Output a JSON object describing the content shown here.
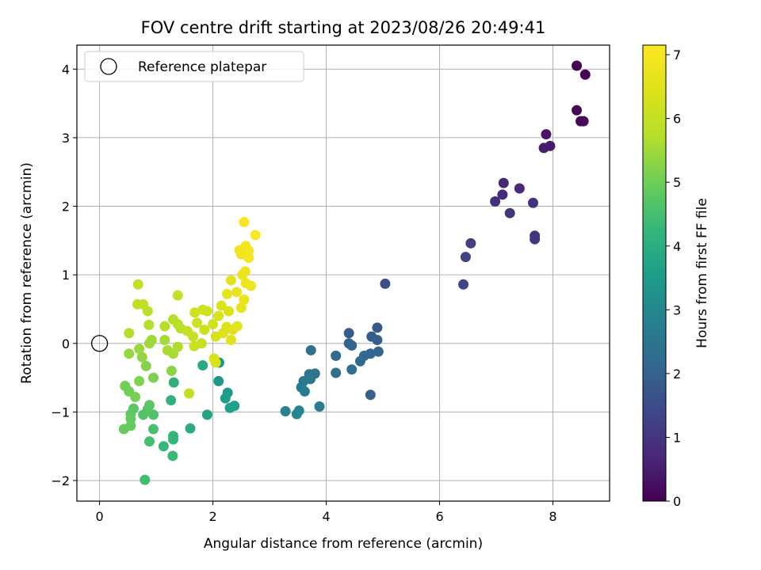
{
  "chart_data": {
    "type": "scatter",
    "title": "FOV centre drift starting at 2023/08/26 20:49:41",
    "xlabel": "Angular distance from reference (arcmin)",
    "ylabel": "Rotation from reference (arcmin)",
    "xlim": [
      -0.4,
      9.0
    ],
    "ylim": [
      -2.3,
      4.35
    ],
    "xticks": [
      0,
      2,
      4,
      6,
      8
    ],
    "yticks": [
      -2,
      -1,
      0,
      1,
      2,
      3,
      4
    ],
    "grid": true,
    "legend": {
      "position": "top-left",
      "entries": [
        "Reference platepar"
      ]
    },
    "reference_point": {
      "x": 0,
      "y": 0
    },
    "colorbar": {
      "label": "Hours from first FF file",
      "range": [
        0,
        7.15
      ],
      "ticks": [
        0,
        1,
        2,
        3,
        4,
        5,
        6,
        7
      ],
      "colormap": "viridis"
    },
    "points": [
      {
        "x": 8.42,
        "y": 4.05,
        "c": 0.05
      },
      {
        "x": 8.57,
        "y": 3.92,
        "c": 0.08
      },
      {
        "x": 8.42,
        "y": 3.4,
        "c": 0.12
      },
      {
        "x": 8.49,
        "y": 3.24,
        "c": 0.15
      },
      {
        "x": 8.54,
        "y": 3.24,
        "c": 0.18
      },
      {
        "x": 7.88,
        "y": 3.05,
        "c": 0.4
      },
      {
        "x": 7.95,
        "y": 2.88,
        "c": 0.45
      },
      {
        "x": 7.84,
        "y": 2.85,
        "c": 0.5
      },
      {
        "x": 7.13,
        "y": 2.34,
        "c": 0.7
      },
      {
        "x": 7.41,
        "y": 2.26,
        "c": 0.75
      },
      {
        "x": 7.11,
        "y": 2.17,
        "c": 0.8
      },
      {
        "x": 6.98,
        "y": 2.07,
        "c": 0.85
      },
      {
        "x": 7.65,
        "y": 2.05,
        "c": 0.9
      },
      {
        "x": 7.24,
        "y": 1.9,
        "c": 0.95
      },
      {
        "x": 7.68,
        "y": 1.57,
        "c": 1.0
      },
      {
        "x": 7.68,
        "y": 1.52,
        "c": 1.05
      },
      {
        "x": 6.55,
        "y": 1.46,
        "c": 1.2
      },
      {
        "x": 6.46,
        "y": 1.26,
        "c": 1.25
      },
      {
        "x": 6.42,
        "y": 0.86,
        "c": 1.35
      },
      {
        "x": 5.04,
        "y": 0.87,
        "c": 1.55
      },
      {
        "x": 4.9,
        "y": 0.23,
        "c": 1.8
      },
      {
        "x": 4.4,
        "y": 0.15,
        "c": 1.85
      },
      {
        "x": 4.8,
        "y": 0.1,
        "c": 1.9
      },
      {
        "x": 4.9,
        "y": 0.05,
        "c": 1.95
      },
      {
        "x": 4.4,
        "y": 0.0,
        "c": 2.0
      },
      {
        "x": 4.45,
        "y": -0.03,
        "c": 2.05
      },
      {
        "x": 4.92,
        "y": -0.12,
        "c": 2.1
      },
      {
        "x": 4.78,
        "y": -0.15,
        "c": 2.1
      },
      {
        "x": 4.67,
        "y": -0.18,
        "c": 2.15
      },
      {
        "x": 4.17,
        "y": -0.18,
        "c": 2.2
      },
      {
        "x": 4.6,
        "y": -0.26,
        "c": 2.25
      },
      {
        "x": 4.45,
        "y": -0.38,
        "c": 2.3
      },
      {
        "x": 4.17,
        "y": -0.43,
        "c": 2.35
      },
      {
        "x": 3.73,
        "y": -0.1,
        "c": 2.4
      },
      {
        "x": 3.8,
        "y": -0.44,
        "c": 2.45
      },
      {
        "x": 3.7,
        "y": -0.45,
        "c": 2.5
      },
      {
        "x": 3.72,
        "y": -0.52,
        "c": 2.55
      },
      {
        "x": 3.6,
        "y": -0.55,
        "c": 2.6
      },
      {
        "x": 3.56,
        "y": -0.64,
        "c": 2.65
      },
      {
        "x": 3.62,
        "y": -0.7,
        "c": 2.7
      },
      {
        "x": 4.78,
        "y": -0.75,
        "c": 2.0
      },
      {
        "x": 3.88,
        "y": -0.92,
        "c": 2.75
      },
      {
        "x": 3.28,
        "y": -0.99,
        "c": 2.85
      },
      {
        "x": 3.52,
        "y": -0.98,
        "c": 2.9
      },
      {
        "x": 3.48,
        "y": -1.03,
        "c": 2.95
      },
      {
        "x": 2.11,
        "y": -0.28,
        "c": 3.3
      },
      {
        "x": 2.1,
        "y": -0.55,
        "c": 3.4
      },
      {
        "x": 2.26,
        "y": -0.72,
        "c": 3.5
      },
      {
        "x": 2.22,
        "y": -0.8,
        "c": 3.55
      },
      {
        "x": 2.38,
        "y": -0.91,
        "c": 3.6
      },
      {
        "x": 2.3,
        "y": -0.94,
        "c": 3.65
      },
      {
        "x": 1.9,
        "y": -1.04,
        "c": 3.75
      },
      {
        "x": 1.82,
        "y": -0.32,
        "c": 3.85
      },
      {
        "x": 1.6,
        "y": -1.24,
        "c": 3.95
      },
      {
        "x": 1.31,
        "y": -0.57,
        "c": 4.1
      },
      {
        "x": 1.26,
        "y": -0.83,
        "c": 4.15
      },
      {
        "x": 1.3,
        "y": -1.35,
        "c": 4.2
      },
      {
        "x": 1.3,
        "y": -1.4,
        "c": 4.25
      },
      {
        "x": 1.13,
        "y": -1.5,
        "c": 4.3
      },
      {
        "x": 1.29,
        "y": -1.64,
        "c": 4.35
      },
      {
        "x": 0.8,
        "y": -1.99,
        "c": 4.45
      },
      {
        "x": 0.88,
        "y": -1.43,
        "c": 4.5
      },
      {
        "x": 0.95,
        "y": -1.25,
        "c": 4.55
      },
      {
        "x": 0.95,
        "y": -1.04,
        "c": 4.6
      },
      {
        "x": 0.77,
        "y": -1.04,
        "c": 4.65
      },
      {
        "x": 0.85,
        "y": -0.96,
        "c": 4.7
      },
      {
        "x": 0.88,
        "y": -0.9,
        "c": 4.75
      },
      {
        "x": 0.6,
        "y": -0.95,
        "c": 4.8
      },
      {
        "x": 0.55,
        "y": -1.03,
        "c": 4.8
      },
      {
        "x": 0.55,
        "y": -1.1,
        "c": 4.85
      },
      {
        "x": 0.55,
        "y": -1.2,
        "c": 4.9
      },
      {
        "x": 0.43,
        "y": -1.25,
        "c": 4.9
      },
      {
        "x": 0.52,
        "y": -0.7,
        "c": 5.0
      },
      {
        "x": 0.45,
        "y": -0.62,
        "c": 5.05
      },
      {
        "x": 0.63,
        "y": -0.78,
        "c": 5.1
      },
      {
        "x": 0.95,
        "y": -0.5,
        "c": 5.15
      },
      {
        "x": 0.7,
        "y": -0.55,
        "c": 5.2
      },
      {
        "x": 0.82,
        "y": -0.33,
        "c": 5.25
      },
      {
        "x": 1.27,
        "y": -0.4,
        "c": 5.3
      },
      {
        "x": 0.75,
        "y": -0.2,
        "c": 5.35
      },
      {
        "x": 0.52,
        "y": -0.15,
        "c": 5.4
      },
      {
        "x": 0.7,
        "y": -0.08,
        "c": 5.45
      },
      {
        "x": 0.88,
        "y": 0.0,
        "c": 5.5
      },
      {
        "x": 0.92,
        "y": 0.05,
        "c": 5.5
      },
      {
        "x": 1.15,
        "y": 0.05,
        "c": 5.55
      },
      {
        "x": 1.2,
        "y": -0.1,
        "c": 5.6
      },
      {
        "x": 1.3,
        "y": -0.15,
        "c": 5.6
      },
      {
        "x": 1.38,
        "y": -0.05,
        "c": 5.65
      },
      {
        "x": 0.52,
        "y": 0.15,
        "c": 5.7
      },
      {
        "x": 0.87,
        "y": 0.27,
        "c": 5.7
      },
      {
        "x": 1.15,
        "y": 0.25,
        "c": 5.75
      },
      {
        "x": 1.3,
        "y": 0.35,
        "c": 5.75
      },
      {
        "x": 1.38,
        "y": 0.28,
        "c": 5.8
      },
      {
        "x": 1.43,
        "y": 0.22,
        "c": 5.8
      },
      {
        "x": 0.85,
        "y": 0.47,
        "c": 5.85
      },
      {
        "x": 0.67,
        "y": 0.57,
        "c": 5.85
      },
      {
        "x": 0.77,
        "y": 0.57,
        "c": 5.9
      },
      {
        "x": 0.68,
        "y": 0.86,
        "c": 5.9
      },
      {
        "x": 1.38,
        "y": 0.7,
        "c": 5.95
      },
      {
        "x": 1.58,
        "y": -0.73,
        "c": 5.95
      },
      {
        "x": 1.55,
        "y": 0.18,
        "c": 6.0
      },
      {
        "x": 1.65,
        "y": 0.1,
        "c": 6.05
      },
      {
        "x": 1.8,
        "y": 0.0,
        "c": 6.05
      },
      {
        "x": 1.67,
        "y": -0.04,
        "c": 6.1
      },
      {
        "x": 1.85,
        "y": 0.2,
        "c": 6.1
      },
      {
        "x": 1.72,
        "y": 0.3,
        "c": 6.15
      },
      {
        "x": 1.68,
        "y": 0.45,
        "c": 6.15
      },
      {
        "x": 1.9,
        "y": 0.47,
        "c": 6.2
      },
      {
        "x": 1.82,
        "y": 0.49,
        "c": 6.2
      },
      {
        "x": 2.0,
        "y": 0.28,
        "c": 6.25
      },
      {
        "x": 2.05,
        "y": 0.1,
        "c": 6.3
      },
      {
        "x": 2.1,
        "y": 0.4,
        "c": 6.3
      },
      {
        "x": 2.02,
        "y": -0.22,
        "c": 6.35
      },
      {
        "x": 2.05,
        "y": -0.28,
        "c": 6.35
      },
      {
        "x": 2.15,
        "y": 0.55,
        "c": 6.4
      },
      {
        "x": 2.18,
        "y": 0.15,
        "c": 6.4
      },
      {
        "x": 2.24,
        "y": 0.24,
        "c": 6.45
      },
      {
        "x": 2.28,
        "y": 0.47,
        "c": 6.45
      },
      {
        "x": 2.32,
        "y": 0.05,
        "c": 6.5
      },
      {
        "x": 2.35,
        "y": 0.2,
        "c": 6.5
      },
      {
        "x": 2.43,
        "y": 0.25,
        "c": 6.55
      },
      {
        "x": 2.25,
        "y": 0.72,
        "c": 6.6
      },
      {
        "x": 2.32,
        "y": 0.92,
        "c": 6.6
      },
      {
        "x": 2.42,
        "y": 0.75,
        "c": 6.65
      },
      {
        "x": 2.5,
        "y": 0.52,
        "c": 6.65
      },
      {
        "x": 2.55,
        "y": 0.64,
        "c": 6.7
      },
      {
        "x": 2.52,
        "y": 1.0,
        "c": 6.75
      },
      {
        "x": 2.57,
        "y": 1.05,
        "c": 6.75
      },
      {
        "x": 2.58,
        "y": 0.88,
        "c": 6.8
      },
      {
        "x": 2.67,
        "y": 0.84,
        "c": 6.8
      },
      {
        "x": 2.47,
        "y": 1.36,
        "c": 6.85
      },
      {
        "x": 2.5,
        "y": 1.3,
        "c": 6.85
      },
      {
        "x": 2.58,
        "y": 1.42,
        "c": 6.9
      },
      {
        "x": 2.63,
        "y": 1.35,
        "c": 6.95
      },
      {
        "x": 2.63,
        "y": 1.25,
        "c": 7.0
      },
      {
        "x": 2.55,
        "y": 1.77,
        "c": 7.05
      },
      {
        "x": 2.75,
        "y": 1.58,
        "c": 7.1
      }
    ]
  }
}
